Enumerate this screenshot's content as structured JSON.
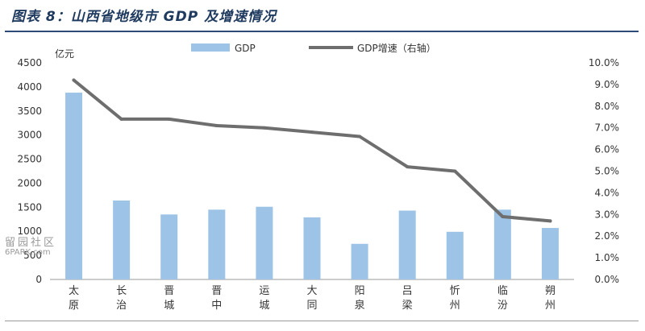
{
  "header": {
    "title": "图表 8：山西省地级市 GDP 及增速情况"
  },
  "watermark": {
    "line1": "留园社区",
    "line2": "6PARK.com"
  },
  "footer": {
    "text": ""
  },
  "chart_data": {
    "type": "bar+line",
    "categories": [
      [
        "太",
        "原"
      ],
      [
        "长",
        "治"
      ],
      [
        "晋",
        "城"
      ],
      [
        "晋",
        "中"
      ],
      [
        "运",
        "城"
      ],
      [
        "大",
        "同"
      ],
      [
        "阳",
        "泉"
      ],
      [
        "吕",
        "梁"
      ],
      [
        "忻",
        "州"
      ],
      [
        "临",
        "汾"
      ],
      [
        "朔",
        "州"
      ]
    ],
    "series": [
      {
        "name": "GDP",
        "type": "bar",
        "axis": "left",
        "color": "#9dc3e6",
        "values": [
          3880,
          1640,
          1350,
          1450,
          1510,
          1290,
          740,
          1430,
          990,
          1450,
          1070
        ]
      },
      {
        "name": "GDP增速（右轴）",
        "type": "line",
        "axis": "right",
        "color": "#6e6e6e",
        "values": [
          9.2,
          7.4,
          7.4,
          7.1,
          7.0,
          6.8,
          6.6,
          5.2,
          5.0,
          2.9,
          2.7
        ]
      }
    ],
    "ylabel": "亿元",
    "ylim": [
      0,
      4500
    ],
    "yticks": [
      "0",
      "500",
      "1000",
      "1500",
      "2000",
      "2500",
      "3000",
      "3500",
      "4000",
      "4500"
    ],
    "y2lim": [
      0,
      10
    ],
    "y2ticks": [
      "0.0%",
      "1.0%",
      "2.0%",
      "3.0%",
      "4.0%",
      "5.0%",
      "6.0%",
      "7.0%",
      "8.0%",
      "9.0%",
      "10.0%"
    ],
    "legend": "top"
  }
}
